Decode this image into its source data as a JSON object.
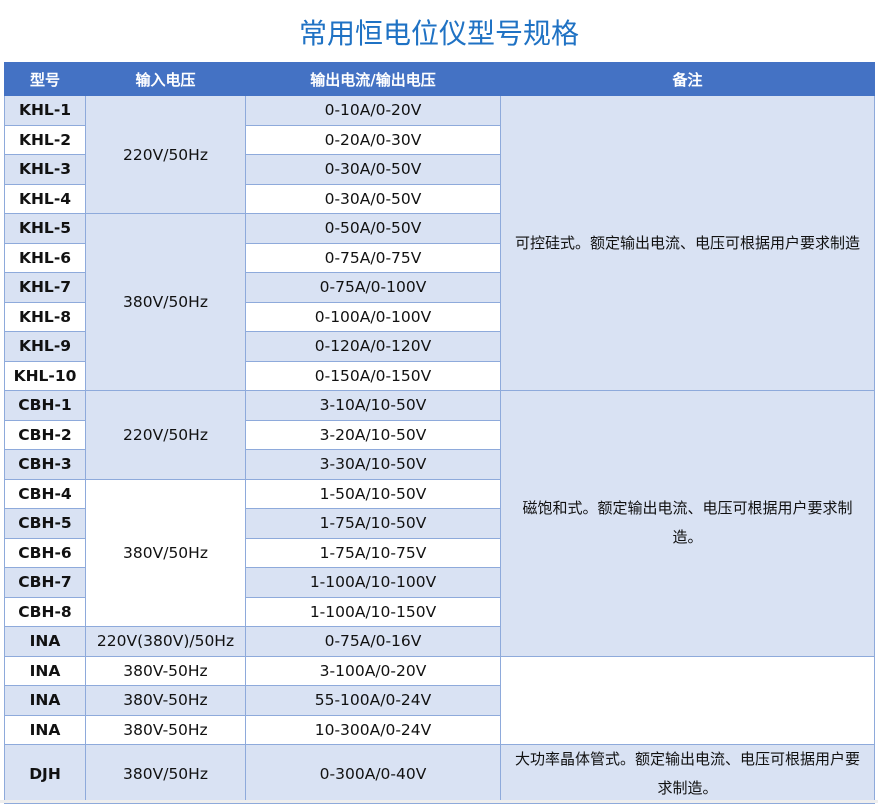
{
  "title": "常用恒电位仪型号规格",
  "colors": {
    "header": "#4472C4",
    "row_alt": "#D9E2F3",
    "title": "#1F72C4",
    "border": "#8EAADB"
  },
  "headers": [
    "型号",
    "输入电压",
    "输出电流/输出电压",
    "备注"
  ],
  "models": [
    "KHL-1",
    "KHL-2",
    "KHL-3",
    "KHL-4",
    "KHL-5",
    "KHL-6",
    "KHL-7",
    "KHL-8",
    "KHL-9",
    "KHL-10",
    "CBH-1",
    "CBH-2",
    "CBH-3",
    "CBH-4",
    "CBH-5",
    "CBH-6",
    "CBH-7",
    "CBH-8",
    "INA",
    "INA",
    "INA",
    "INA",
    "DJH"
  ],
  "outputs": [
    "0-10A/0-20V",
    "0-20A/0-30V",
    "0-30A/0-50V",
    "0-30A/0-50V",
    "0-50A/0-50V",
    "0-75A/0-75V",
    "0-75A/0-100V",
    "0-100A/0-100V",
    "0-120A/0-120V",
    "0-150A/0-150V",
    "3-10A/10-50V",
    "3-20A/10-50V",
    "3-30A/10-50V",
    "1-50A/10-50V",
    "1-75A/10-50V",
    "1-75A/10-75V",
    "1-100A/10-100V",
    "1-100A/10-150V",
    "0-75A/0-16V",
    "3-100A/0-20V",
    "55-100A/0-24V",
    "10-300A/0-24V",
    "0-300A/0-40V"
  ],
  "inputs": [
    "220V/50Hz",
    "380V/50Hz",
    "220V/50Hz",
    "380V/50Hz",
    "220V(380V)/50Hz",
    "380V-50Hz",
    "380V-50Hz",
    "380V-50Hz",
    "380V/50Hz"
  ],
  "remarks": [
    "可控硅式。额定输出电流、电压可根据用户要求制造",
    "磁饱和式。额定输出电流、电压可根据用户要求制造。",
    "",
    "大功率晶体管式。额定输出电流、电压可根据用户要求制造。"
  ]
}
